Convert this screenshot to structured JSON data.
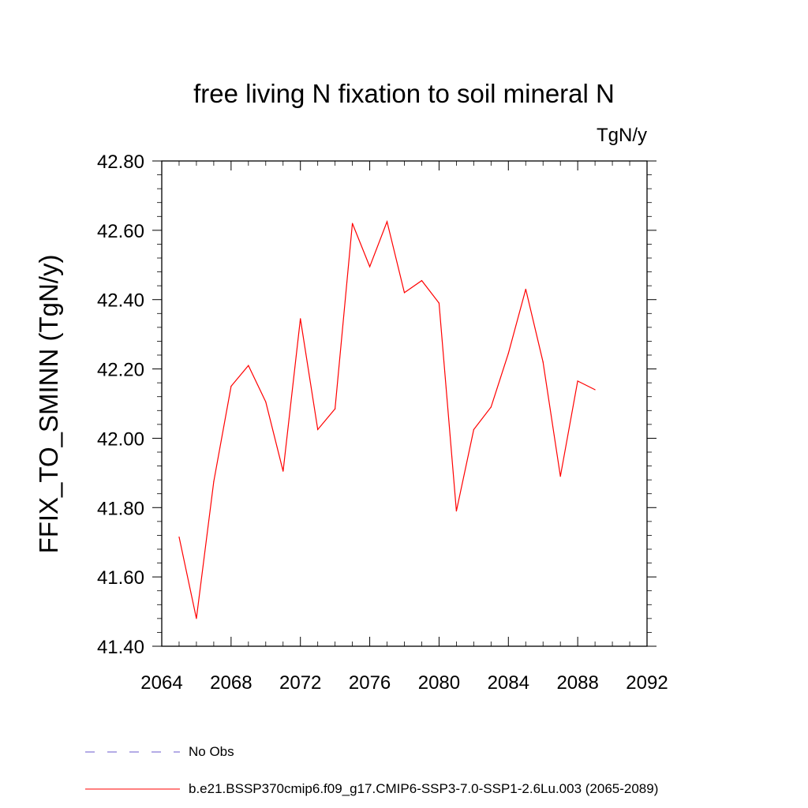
{
  "chart_data": {
    "type": "line",
    "title": "free living N fixation to soil mineral N",
    "units": "TgN/y",
    "ylabel": "FFIX_TO_SMINN  (TgN/y)",
    "xlabel": "",
    "xlim": [
      2064,
      2092
    ],
    "ylim": [
      41.4,
      42.8
    ],
    "x_ticks": [
      2064,
      2068,
      2072,
      2076,
      2080,
      2084,
      2088,
      2092
    ],
    "x_tick_labels": [
      "2064",
      "2068",
      "2072",
      "2076",
      "2080",
      "2084",
      "2088",
      "2092"
    ],
    "y_ticks": [
      41.4,
      41.6,
      41.8,
      42.0,
      42.2,
      42.4,
      42.6,
      42.8
    ],
    "y_tick_labels": [
      "41.40",
      "41.60",
      "41.80",
      "42.00",
      "42.20",
      "42.40",
      "42.60",
      "42.80"
    ],
    "series": [
      {
        "name": "b.e21.BSSP370cmip6.f09_g17.CMIP6-SSP3-7.0-SSP1-2.6Lu.003 (2065-2089)",
        "color": "#ff0000",
        "x": [
          2065,
          2066,
          2067,
          2068,
          2069,
          2070,
          2071,
          2072,
          2073,
          2074,
          2075,
          2076,
          2077,
          2078,
          2079,
          2080,
          2081,
          2082,
          2083,
          2084,
          2085,
          2086,
          2087,
          2088,
          2089
        ],
        "values": [
          41.715,
          41.48,
          41.875,
          42.15,
          42.21,
          42.105,
          41.905,
          42.345,
          42.025,
          42.085,
          42.62,
          42.495,
          42.625,
          42.42,
          42.455,
          42.39,
          41.79,
          42.025,
          42.09,
          42.245,
          42.43,
          42.22,
          41.89,
          42.165,
          42.14
        ]
      }
    ],
    "legend": [
      {
        "label": "No Obs",
        "color": "#6a5acd",
        "style": "dashed"
      },
      {
        "label": "b.e21.BSSP370cmip6.f09_g17.CMIP6-SSP3-7.0-SSP1-2.6Lu.003 (2065-2089)",
        "color": "#ff0000",
        "style": "solid"
      }
    ],
    "legend_position": "bottom-left",
    "grid": false
  }
}
